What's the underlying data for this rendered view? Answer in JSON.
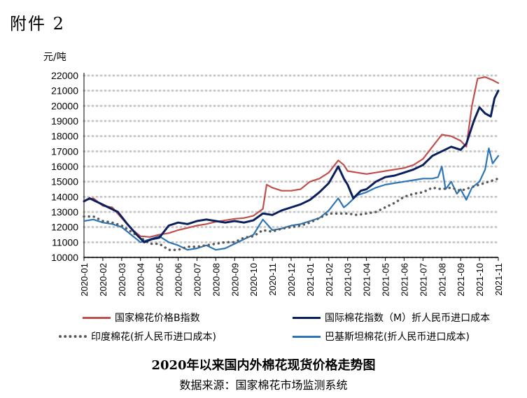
{
  "attachment_label": "附件 2",
  "chart_data": {
    "type": "line",
    "title": "2020年以来国内外棉花现货价格走势图",
    "source": "数据来源：国家棉花市场监测系统",
    "ylabel": "元/吨",
    "ylim": [
      10000,
      22000
    ],
    "yticks": [
      10000,
      11000,
      12000,
      13000,
      14000,
      15000,
      16000,
      17000,
      18000,
      19000,
      20000,
      21000,
      22000
    ],
    "x_tick_labels": [
      "2020-01",
      "2020-02",
      "2020-03",
      "2020-04",
      "2020-05",
      "2020-06",
      "2020-07",
      "2020-08",
      "2020-09",
      "2020-10",
      "2020-11",
      "2020-12",
      "2021-01",
      "2021-02",
      "2021-03",
      "2021-04",
      "2021-05",
      "2021-06",
      "2021-07",
      "2021-08",
      "2021-09",
      "2021-10",
      "2021-11"
    ],
    "xrange": [
      0,
      22
    ],
    "grid": "horizontal dashed",
    "legend_placement": "bottom",
    "series": [
      {
        "name": "国家棉花价格B指数",
        "color": "#c0504d",
        "style": "solid",
        "points": [
          [
            0,
            13750
          ],
          [
            0.5,
            13900
          ],
          [
            1,
            13400
          ],
          [
            1.5,
            13300
          ],
          [
            2,
            12600
          ],
          [
            2.5,
            11900
          ],
          [
            3,
            11400
          ],
          [
            3.5,
            11350
          ],
          [
            4,
            11500
          ],
          [
            4.5,
            11600
          ],
          [
            5,
            11800
          ],
          [
            5.5,
            11950
          ],
          [
            6,
            12100
          ],
          [
            6.5,
            12200
          ],
          [
            7,
            12350
          ],
          [
            7.5,
            12450
          ],
          [
            8,
            12550
          ],
          [
            8.5,
            12600
          ],
          [
            9,
            12750
          ],
          [
            9.5,
            13200
          ],
          [
            9.7,
            14800
          ],
          [
            10,
            14600
          ],
          [
            10.5,
            14400
          ],
          [
            11,
            14400
          ],
          [
            11.5,
            14500
          ],
          [
            12,
            15000
          ],
          [
            12.5,
            15200
          ],
          [
            13,
            15600
          ],
          [
            13.5,
            16400
          ],
          [
            13.8,
            16100
          ],
          [
            14,
            15700
          ],
          [
            14.5,
            15600
          ],
          [
            15,
            15500
          ],
          [
            15.5,
            15600
          ],
          [
            16,
            15700
          ],
          [
            16.5,
            15800
          ],
          [
            17,
            15900
          ],
          [
            17.5,
            16100
          ],
          [
            18,
            16500
          ],
          [
            18.5,
            17300
          ],
          [
            19,
            18100
          ],
          [
            19.5,
            18000
          ],
          [
            20,
            17700
          ],
          [
            20.3,
            17300
          ],
          [
            20.6,
            20000
          ],
          [
            20.9,
            21800
          ],
          [
            21.3,
            21900
          ],
          [
            21.7,
            21700
          ],
          [
            22,
            21500
          ]
        ]
      },
      {
        "name": "国际棉花指数（M）折人民币进口成本",
        "color": "#0b1f5c",
        "style": "solid",
        "points": [
          [
            0,
            13700
          ],
          [
            0.3,
            13900
          ],
          [
            0.8,
            13600
          ],
          [
            1.3,
            13300
          ],
          [
            1.8,
            13000
          ],
          [
            2.3,
            12200
          ],
          [
            2.8,
            11500
          ],
          [
            3.2,
            11000
          ],
          [
            3.6,
            11200
          ],
          [
            4,
            11300
          ],
          [
            4.5,
            12100
          ],
          [
            5,
            12300
          ],
          [
            5.5,
            12200
          ],
          [
            6,
            12400
          ],
          [
            6.5,
            12500
          ],
          [
            7,
            12400
          ],
          [
            7.5,
            12300
          ],
          [
            8,
            12400
          ],
          [
            8.5,
            12300
          ],
          [
            9,
            12450
          ],
          [
            9.5,
            12900
          ],
          [
            10,
            12800
          ],
          [
            10.5,
            13100
          ],
          [
            11,
            13300
          ],
          [
            11.5,
            13500
          ],
          [
            12,
            13800
          ],
          [
            12.5,
            14300
          ],
          [
            13,
            14900
          ],
          [
            13.5,
            16000
          ],
          [
            13.8,
            15200
          ],
          [
            14,
            14800
          ],
          [
            14.3,
            13900
          ],
          [
            14.7,
            14400
          ],
          [
            15,
            14500
          ],
          [
            15.5,
            15000
          ],
          [
            16,
            15300
          ],
          [
            16.5,
            15400
          ],
          [
            17,
            15600
          ],
          [
            17.5,
            15800
          ],
          [
            18,
            16100
          ],
          [
            18.5,
            16700
          ],
          [
            19,
            17000
          ],
          [
            19.5,
            17300
          ],
          [
            20,
            17100
          ],
          [
            20.3,
            17500
          ],
          [
            20.7,
            19000
          ],
          [
            21,
            19900
          ],
          [
            21.3,
            19500
          ],
          [
            21.6,
            19300
          ],
          [
            21.8,
            20500
          ],
          [
            22,
            21000
          ]
        ]
      },
      {
        "name": "印度棉花(折人民币进口成本)",
        "color": "#5a5a5a",
        "style": "dots",
        "points": [
          [
            0,
            12700
          ],
          [
            0.5,
            12700
          ],
          [
            1,
            12400
          ],
          [
            1.5,
            12300
          ],
          [
            2,
            12100
          ],
          [
            2.5,
            11700
          ],
          [
            3,
            11300
          ],
          [
            3.5,
            10900
          ],
          [
            4,
            10900
          ],
          [
            4.5,
            10500
          ],
          [
            5,
            10500
          ],
          [
            5.5,
            10700
          ],
          [
            6,
            10700
          ],
          [
            6.5,
            10800
          ],
          [
            7,
            10900
          ],
          [
            7.5,
            11000
          ],
          [
            8,
            11000
          ],
          [
            8.5,
            11300
          ],
          [
            9,
            11400
          ],
          [
            9.5,
            11800
          ],
          [
            10,
            11700
          ],
          [
            10.5,
            11900
          ],
          [
            11,
            12000
          ],
          [
            11.5,
            12100
          ],
          [
            12,
            12300
          ],
          [
            12.5,
            12600
          ],
          [
            13,
            12900
          ],
          [
            13.5,
            12900
          ],
          [
            14,
            12900
          ],
          [
            14.5,
            12800
          ],
          [
            15,
            12900
          ],
          [
            15.5,
            13000
          ],
          [
            16,
            13300
          ],
          [
            16.5,
            13600
          ],
          [
            17,
            14000
          ],
          [
            17.5,
            14200
          ],
          [
            18,
            14300
          ],
          [
            18.5,
            14600
          ],
          [
            19,
            14500
          ],
          [
            19.5,
            14600
          ],
          [
            20,
            14400
          ],
          [
            20.5,
            14600
          ],
          [
            21,
            14800
          ],
          [
            21.5,
            15000
          ],
          [
            22,
            15200
          ]
        ]
      },
      {
        "name": "巴基斯坦棉花(折人民币进口成本)",
        "color": "#2e75b6",
        "style": "solid",
        "points": [
          [
            0,
            12400
          ],
          [
            0.5,
            12500
          ],
          [
            1,
            12300
          ],
          [
            1.5,
            12200
          ],
          [
            2,
            12000
          ],
          [
            2.5,
            11500
          ],
          [
            3,
            11000
          ],
          [
            3.5,
            11200
          ],
          [
            4,
            11400
          ],
          [
            4.5,
            11000
          ],
          [
            5,
            10800
          ],
          [
            5.5,
            10500
          ],
          [
            6,
            10600
          ],
          [
            6.5,
            10800
          ],
          [
            7,
            10500
          ],
          [
            7.5,
            10600
          ],
          [
            8,
            10900
          ],
          [
            8.5,
            11200
          ],
          [
            9,
            11500
          ],
          [
            9.5,
            12500
          ],
          [
            10,
            11800
          ],
          [
            10.5,
            11900
          ],
          [
            11,
            12100
          ],
          [
            11.5,
            12200
          ],
          [
            12,
            12400
          ],
          [
            12.5,
            12600
          ],
          [
            13,
            13100
          ],
          [
            13.5,
            13900
          ],
          [
            13.8,
            13300
          ],
          [
            14,
            13500
          ],
          [
            14.5,
            14100
          ],
          [
            15,
            14300
          ],
          [
            15.5,
            14600
          ],
          [
            16,
            14800
          ],
          [
            16.5,
            14900
          ],
          [
            17,
            15000
          ],
          [
            17.5,
            15100
          ],
          [
            18,
            15200
          ],
          [
            18.5,
            15200
          ],
          [
            18.8,
            15300
          ],
          [
            19,
            16000
          ],
          [
            19.2,
            14500
          ],
          [
            19.5,
            15000
          ],
          [
            19.8,
            14200
          ],
          [
            20,
            14500
          ],
          [
            20.3,
            13800
          ],
          [
            20.6,
            14600
          ],
          [
            21,
            15000
          ],
          [
            21.3,
            15800
          ],
          [
            21.5,
            17200
          ],
          [
            21.7,
            16200
          ],
          [
            22,
            16700
          ]
        ]
      }
    ]
  }
}
